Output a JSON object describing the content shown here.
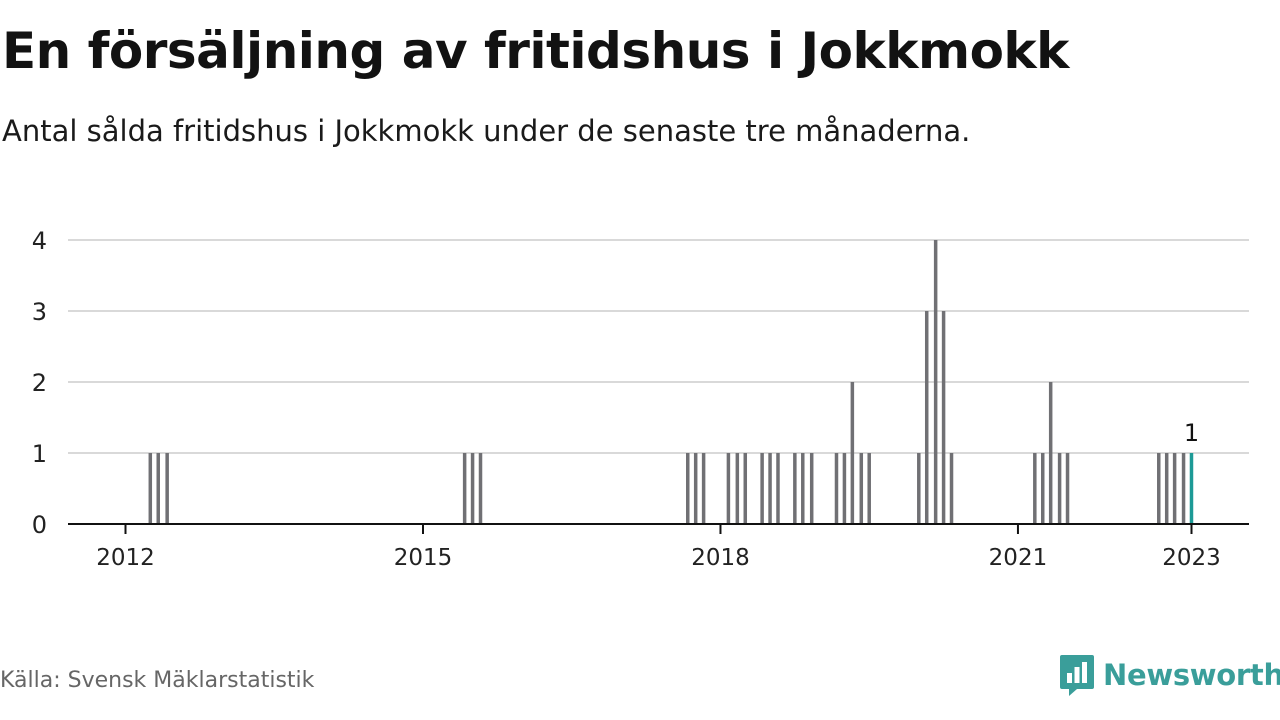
{
  "header": {
    "title": "En försäljning av fritidshus i Jokkmokk",
    "subtitle": "Antal sålda fritidshus i Jokkmokk under de senaste tre månaderna."
  },
  "footer": {
    "source": "Källa: Svensk Mäklarstatistik",
    "brand": "Newsworthy",
    "brand_icon": "newsworthy-logo-icon"
  },
  "colors": {
    "bar": "#707074",
    "highlight": "#1d9a96",
    "grid": "#d9d9d9",
    "axis": "#111111",
    "brand": "#3a9e9a"
  },
  "chart_data": {
    "type": "bar",
    "title": "En försäljning av fritidshus i Jokkmokk",
    "subtitle": "Antal sålda fritidshus i Jokkmokk under de senaste tre månaderna.",
    "xlabel": "",
    "ylabel": "",
    "ylim": [
      0,
      4
    ],
    "yticks": [
      0,
      1,
      2,
      3,
      4
    ],
    "grid": true,
    "xticks": [
      {
        "label": "2012",
        "x": 2012.0
      },
      {
        "label": "2015",
        "x": 2015.0
      },
      {
        "label": "2018",
        "x": 2018.0
      },
      {
        "label": "2021",
        "x": 2021.0
      },
      {
        "label": "2023",
        "x": 2022.75
      }
    ],
    "x_range": [
      2011.42,
      2023.33
    ],
    "unit_note": "x = fractional year (month resolution); y = number sold in rolling three months",
    "bars": [
      {
        "x": 2012.25,
        "value": 1
      },
      {
        "x": 2012.33,
        "value": 1
      },
      {
        "x": 2012.42,
        "value": 1
      },
      {
        "x": 2015.42,
        "value": 1
      },
      {
        "x": 2015.5,
        "value": 1
      },
      {
        "x": 2015.58,
        "value": 1
      },
      {
        "x": 2017.67,
        "value": 1
      },
      {
        "x": 2017.75,
        "value": 1
      },
      {
        "x": 2017.83,
        "value": 1
      },
      {
        "x": 2018.08,
        "value": 1
      },
      {
        "x": 2018.17,
        "value": 1
      },
      {
        "x": 2018.25,
        "value": 1
      },
      {
        "x": 2018.42,
        "value": 1
      },
      {
        "x": 2018.5,
        "value": 1
      },
      {
        "x": 2018.58,
        "value": 1
      },
      {
        "x": 2018.75,
        "value": 1
      },
      {
        "x": 2018.83,
        "value": 1
      },
      {
        "x": 2018.92,
        "value": 1
      },
      {
        "x": 2019.17,
        "value": 1
      },
      {
        "x": 2019.25,
        "value": 1
      },
      {
        "x": 2019.33,
        "value": 2
      },
      {
        "x": 2019.42,
        "value": 1
      },
      {
        "x": 2019.5,
        "value": 1
      },
      {
        "x": 2020.0,
        "value": 1
      },
      {
        "x": 2020.08,
        "value": 3
      },
      {
        "x": 2020.17,
        "value": 4
      },
      {
        "x": 2020.25,
        "value": 3
      },
      {
        "x": 2020.33,
        "value": 1
      },
      {
        "x": 2021.17,
        "value": 1
      },
      {
        "x": 2021.25,
        "value": 1
      },
      {
        "x": 2021.33,
        "value": 2
      },
      {
        "x": 2021.42,
        "value": 1
      },
      {
        "x": 2021.5,
        "value": 1
      },
      {
        "x": 2022.42,
        "value": 1
      },
      {
        "x": 2022.5,
        "value": 1
      },
      {
        "x": 2022.58,
        "value": 1
      },
      {
        "x": 2022.67,
        "value": 1
      },
      {
        "x": 2022.75,
        "value": 1,
        "highlight": true,
        "label": "1"
      }
    ]
  }
}
